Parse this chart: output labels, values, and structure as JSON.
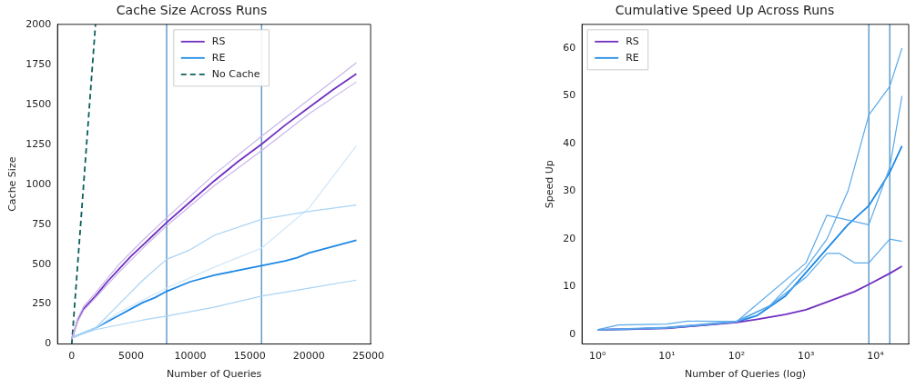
{
  "chart_data": [
    {
      "type": "line",
      "title": "Cache Size Across Runs",
      "xlabel": "Number of Queries",
      "ylabel": "Cache Size",
      "xlim": [
        -1200,
        25200
      ],
      "ylim": [
        0,
        2000
      ],
      "xticks": [
        0,
        5000,
        10000,
        15000,
        20000,
        25000
      ],
      "yticks": [
        0,
        250,
        500,
        750,
        1000,
        1250,
        1500,
        1750,
        2000
      ],
      "legend": "top center",
      "ref_lines": [
        {
          "axis": "x",
          "value": 8000,
          "color": "#3a85c0"
        },
        {
          "axis": "x",
          "value": 16000,
          "color": "#3a85c0"
        }
      ],
      "series": [
        {
          "color": "#c9b6e8",
          "x": [
            0,
            500,
            1000,
            2000,
            4000,
            6000,
            8000,
            12000,
            16000,
            20000,
            24000
          ],
          "values": [
            30,
            160,
            235,
            320,
            500,
            650,
            790,
            1060,
            1300,
            1530,
            1760
          ]
        },
        {
          "color": "#c9b6e8",
          "x": [
            0,
            500,
            1000,
            2000,
            4000,
            6000,
            8000,
            12000,
            16000,
            20000,
            24000
          ],
          "values": [
            30,
            140,
            210,
            290,
            450,
            600,
            740,
            990,
            1210,
            1440,
            1640
          ]
        },
        {
          "color": "#a9d4f5",
          "x": [
            0,
            2000,
            4000,
            6000,
            8000,
            10000,
            12000,
            16000,
            20000,
            24000
          ],
          "values": [
            40,
            100,
            250,
            400,
            530,
            590,
            680,
            780,
            830,
            870
          ]
        },
        {
          "color": "#a9d4f5",
          "x": [
            0,
            2000,
            4000,
            6000,
            8000,
            12000,
            16000,
            20000,
            24000
          ],
          "values": [
            40,
            90,
            120,
            150,
            175,
            230,
            300,
            350,
            400
          ]
        },
        {
          "color": "#cfe6f9",
          "x": [
            0,
            2000,
            4000,
            8000,
            12000,
            16000,
            20000,
            24000
          ],
          "values": [
            40,
            100,
            200,
            350,
            480,
            600,
            850,
            1240
          ]
        },
        {
          "name": "RS",
          "color": "#7030c0",
          "x": [
            0,
            500,
            1000,
            2000,
            3000,
            4000,
            5000,
            6000,
            7000,
            8000,
            10000,
            12000,
            14000,
            16000,
            18000,
            20000,
            22000,
            24000
          ],
          "values": [
            30,
            150,
            220,
            300,
            390,
            470,
            550,
            620,
            690,
            760,
            890,
            1020,
            1140,
            1250,
            1370,
            1480,
            1590,
            1690
          ]
        },
        {
          "name": "RE",
          "color": "#1e88e5",
          "x": [
            0,
            2000,
            3000,
            4000,
            5000,
            6000,
            7000,
            8000,
            10000,
            12000,
            14000,
            16000,
            18000,
            19000,
            20000,
            22000,
            24000
          ],
          "values": [
            40,
            100,
            140,
            180,
            220,
            260,
            290,
            330,
            390,
            430,
            460,
            490,
            520,
            540,
            570,
            610,
            650
          ]
        },
        {
          "name": "No Cache",
          "color": "#0b5f5a",
          "line_style": "dashed",
          "x": [
            0,
            2000
          ],
          "values": [
            0,
            2000
          ]
        }
      ]
    },
    {
      "type": "line",
      "title": "Cumulative Speed Up Across Runs",
      "xlabel": "Number of Queries (log)",
      "ylabel": "Speed Up",
      "log": "x",
      "xlim": [
        0.6,
        30000
      ],
      "ylim": [
        -2,
        65
      ],
      "xticks": [
        {
          "value": 1,
          "label": "10⁰"
        },
        {
          "value": 10,
          "label": "10¹"
        },
        {
          "value": 100,
          "label": "10²"
        },
        {
          "value": 1000,
          "label": "10³"
        },
        {
          "value": 10000,
          "label": "10⁴"
        }
      ],
      "yticks": [
        0,
        10,
        20,
        30,
        40,
        50,
        60
      ],
      "legend": "top left",
      "ref_lines": [
        {
          "axis": "x",
          "value": 8000,
          "color": "#3a85c0"
        },
        {
          "axis": "x",
          "value": 16000,
          "color": "#3a85c0"
        }
      ],
      "series": [
        {
          "color": "#5aa9ea",
          "x": [
            1,
            10,
            100,
            300,
            1000,
            2000,
            4000,
            8000,
            16000,
            24000
          ],
          "values": [
            1,
            1.5,
            2.8,
            6,
            14,
            20,
            30,
            46,
            52,
            60
          ]
        },
        {
          "color": "#5aa9ea",
          "x": [
            1,
            10,
            100,
            300,
            1000,
            2000,
            3000,
            5000,
            8000,
            16000,
            24000
          ],
          "values": [
            1,
            1.3,
            2.6,
            6,
            12,
            17,
            17,
            15,
            15,
            20,
            19.5
          ]
        },
        {
          "color": "#5aa9ea",
          "x": [
            1,
            2,
            10,
            20,
            100,
            1000,
            2000,
            4000,
            8000,
            16000,
            24000
          ],
          "values": [
            1,
            2,
            2.2,
            2.8,
            2.7,
            15,
            25,
            24,
            23,
            35,
            50
          ]
        },
        {
          "name": "RS",
          "color": "#7030c0",
          "x": [
            1,
            10,
            100,
            200,
            500,
            1000,
            2000,
            5000,
            8000,
            16000,
            24000
          ],
          "values": [
            1,
            1.3,
            2.5,
            3.2,
            4.2,
            5.2,
            6.8,
            9,
            10.5,
            12.8,
            14.3
          ]
        },
        {
          "name": "RE",
          "color": "#1e88e5",
          "x": [
            1,
            3,
            10,
            30,
            100,
            200,
            500,
            1000,
            2000,
            4000,
            8000,
            12000,
            16000,
            24000
          ],
          "values": [
            1,
            1.1,
            1.4,
            1.9,
            2.6,
            4,
            8,
            13,
            18,
            23,
            27,
            31,
            34,
            39.5
          ]
        }
      ]
    }
  ]
}
